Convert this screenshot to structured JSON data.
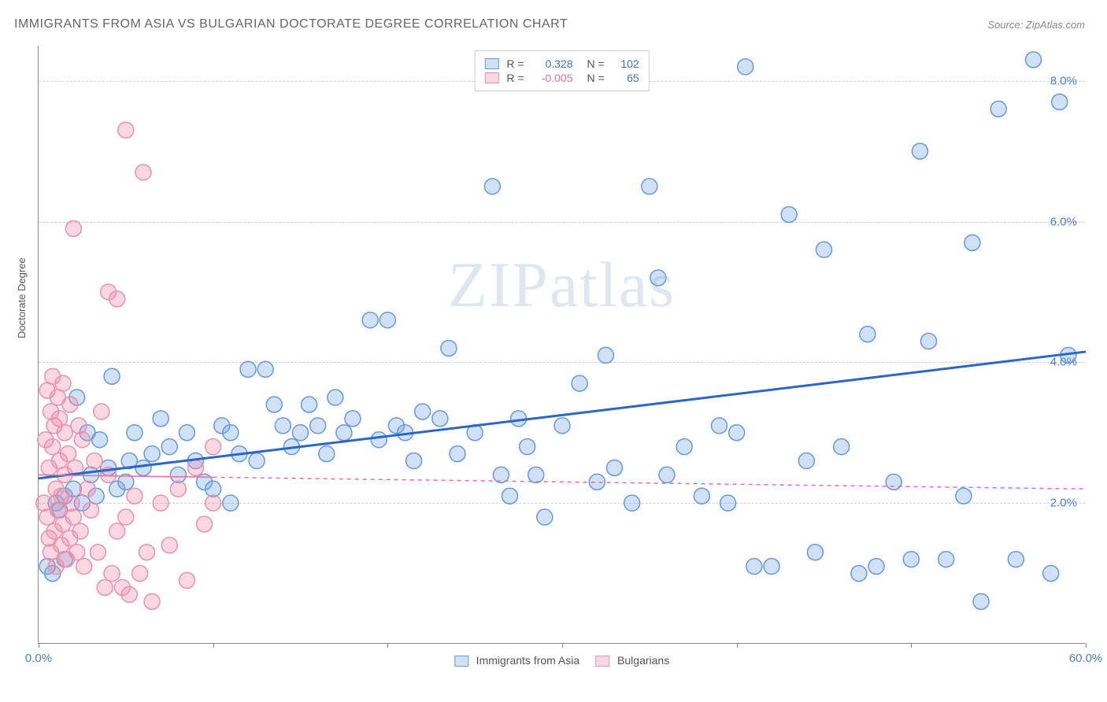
{
  "title": "IMMIGRANTS FROM ASIA VS BULGARIAN DOCTORATE DEGREE CORRELATION CHART",
  "source": "Source: ZipAtlas.com",
  "watermark": "ZIPatlas",
  "y_axis_label": "Doctorate Degree",
  "chart": {
    "type": "scatter",
    "background_color": "#ffffff",
    "grid_color": "#d0d0d0",
    "axis_color": "#888888",
    "xlim": [
      0,
      60
    ],
    "ylim": [
      0,
      8.5
    ],
    "x_ticks": [
      0,
      10,
      20,
      30,
      40,
      50,
      60
    ],
    "x_tick_labels": [
      "0.0%",
      "",
      "",
      "",
      "",
      "",
      "60.0%"
    ],
    "y_ticks": [
      2,
      4,
      6,
      8
    ],
    "y_tick_labels": [
      "2.0%",
      "4.0%",
      "6.0%",
      "8.0%"
    ],
    "tick_label_color": "#4a7fc9",
    "tick_label_fontsize": 15,
    "marker_radius": 10,
    "marker_stroke_width": 1.5,
    "series": [
      {
        "name": "Immigrants from Asia",
        "fill": "rgba(120,165,225,0.35)",
        "stroke": "#6699dd",
        "R": "0.328",
        "N": "102",
        "regression": {
          "x1": 0,
          "y1": 2.35,
          "x2": 60,
          "y2": 4.15,
          "color": "#2a66c9",
          "width": 3,
          "dash": "none"
        },
        "data_extent_x": 60,
        "points": [
          [
            0.5,
            1.1
          ],
          [
            0.8,
            1.0
          ],
          [
            1.0,
            2.0
          ],
          [
            1.2,
            1.9
          ],
          [
            1.5,
            2.1
          ],
          [
            1.5,
            1.2
          ],
          [
            2.0,
            2.2
          ],
          [
            2.2,
            3.5
          ],
          [
            2.5,
            2.0
          ],
          [
            2.8,
            3.0
          ],
          [
            3.0,
            2.4
          ],
          [
            3.3,
            2.1
          ],
          [
            3.5,
            2.9
          ],
          [
            4.0,
            2.5
          ],
          [
            4.5,
            2.2
          ],
          [
            5.0,
            2.3
          ],
          [
            5.2,
            2.6
          ],
          [
            5.5,
            3.0
          ],
          [
            6.0,
            2.5
          ],
          [
            6.5,
            2.7
          ],
          [
            7.0,
            3.2
          ],
          [
            7.5,
            2.8
          ],
          [
            8.0,
            2.4
          ],
          [
            8.5,
            3.0
          ],
          [
            9.0,
            2.6
          ],
          [
            9.5,
            2.3
          ],
          [
            10.0,
            2.2
          ],
          [
            10.5,
            3.1
          ],
          [
            11.0,
            3.0
          ],
          [
            11.5,
            2.7
          ],
          [
            12.0,
            3.9
          ],
          [
            12.5,
            2.6
          ],
          [
            13.0,
            3.9
          ],
          [
            13.5,
            3.4
          ],
          [
            14.0,
            3.1
          ],
          [
            14.5,
            2.8
          ],
          [
            15.0,
            3.0
          ],
          [
            15.5,
            3.4
          ],
          [
            16.0,
            3.1
          ],
          [
            16.5,
            2.7
          ],
          [
            17.0,
            3.5
          ],
          [
            17.5,
            3.0
          ],
          [
            18.0,
            3.2
          ],
          [
            19.0,
            4.6
          ],
          [
            19.5,
            2.9
          ],
          [
            20.0,
            4.6
          ],
          [
            20.5,
            3.1
          ],
          [
            21.0,
            3.0
          ],
          [
            21.5,
            2.6
          ],
          [
            22.0,
            3.3
          ],
          [
            23.0,
            3.2
          ],
          [
            23.5,
            4.2
          ],
          [
            24.0,
            2.7
          ],
          [
            25.0,
            3.0
          ],
          [
            26.0,
            6.5
          ],
          [
            26.5,
            2.4
          ],
          [
            27.0,
            2.1
          ],
          [
            27.5,
            3.2
          ],
          [
            28.0,
            2.8
          ],
          [
            28.5,
            2.4
          ],
          [
            29.0,
            1.8
          ],
          [
            30.0,
            3.1
          ],
          [
            31.0,
            3.7
          ],
          [
            32.0,
            2.3
          ],
          [
            33.0,
            2.5
          ],
          [
            34.0,
            2.0
          ],
          [
            35.0,
            6.5
          ],
          [
            35.5,
            5.2
          ],
          [
            36.0,
            2.4
          ],
          [
            37.0,
            2.8
          ],
          [
            38.0,
            2.1
          ],
          [
            39.0,
            3.1
          ],
          [
            39.5,
            2.0
          ],
          [
            40.0,
            3.0
          ],
          [
            41.0,
            1.1
          ],
          [
            42.0,
            1.1
          ],
          [
            43.0,
            6.1
          ],
          [
            44.0,
            2.6
          ],
          [
            44.5,
            1.3
          ],
          [
            45.0,
            5.6
          ],
          [
            46.0,
            2.8
          ],
          [
            47.0,
            1.0
          ],
          [
            47.5,
            4.4
          ],
          [
            48.0,
            1.1
          ],
          [
            49.0,
            2.3
          ],
          [
            50.0,
            1.2
          ],
          [
            50.5,
            7.0
          ],
          [
            51.0,
            4.3
          ],
          [
            52.0,
            1.2
          ],
          [
            53.0,
            2.1
          ],
          [
            53.5,
            5.7
          ],
          [
            54.0,
            0.6
          ],
          [
            55.0,
            7.6
          ],
          [
            56.0,
            1.2
          ],
          [
            57.0,
            8.3
          ],
          [
            58.0,
            1.0
          ],
          [
            58.5,
            7.7
          ],
          [
            59.0,
            4.1
          ],
          [
            40.5,
            8.2
          ],
          [
            32.5,
            4.1
          ],
          [
            11.0,
            2.0
          ],
          [
            4.2,
            3.8
          ]
        ]
      },
      {
        "name": "Bulgarians",
        "fill": "rgba(240,140,170,0.35)",
        "stroke": "#e792ae",
        "R": "-0.005",
        "N": "65",
        "regression": {
          "x1": 0,
          "y1": 2.4,
          "x2": 60,
          "y2": 2.2,
          "color": "#e86f95",
          "width": 1.5,
          "dash": "4,4"
        },
        "regression_solid_extent_x": 10,
        "points": [
          [
            0.3,
            2.0
          ],
          [
            0.4,
            2.9
          ],
          [
            0.5,
            1.8
          ],
          [
            0.5,
            3.6
          ],
          [
            0.6,
            1.5
          ],
          [
            0.6,
            2.5
          ],
          [
            0.7,
            3.3
          ],
          [
            0.7,
            1.3
          ],
          [
            0.8,
            2.8
          ],
          [
            0.8,
            3.8
          ],
          [
            0.9,
            1.6
          ],
          [
            0.9,
            3.1
          ],
          [
            1.0,
            2.2
          ],
          [
            1.0,
            1.1
          ],
          [
            1.1,
            3.5
          ],
          [
            1.1,
            1.9
          ],
          [
            1.2,
            2.6
          ],
          [
            1.2,
            3.2
          ],
          [
            1.3,
            1.4
          ],
          [
            1.3,
            2.1
          ],
          [
            1.4,
            3.7
          ],
          [
            1.4,
            1.7
          ],
          [
            1.5,
            2.4
          ],
          [
            1.5,
            3.0
          ],
          [
            1.6,
            1.2
          ],
          [
            1.7,
            2.7
          ],
          [
            1.8,
            3.4
          ],
          [
            1.8,
            1.5
          ],
          [
            1.9,
            2.0
          ],
          [
            2.0,
            5.9
          ],
          [
            2.0,
            1.8
          ],
          [
            2.1,
            2.5
          ],
          [
            2.2,
            1.3
          ],
          [
            2.3,
            3.1
          ],
          [
            2.4,
            1.6
          ],
          [
            2.5,
            2.9
          ],
          [
            2.6,
            1.1
          ],
          [
            2.8,
            2.2
          ],
          [
            3.0,
            1.9
          ],
          [
            3.2,
            2.6
          ],
          [
            3.4,
            1.3
          ],
          [
            3.6,
            3.3
          ],
          [
            3.8,
            0.8
          ],
          [
            4.0,
            5.0
          ],
          [
            4.0,
            2.4
          ],
          [
            4.2,
            1.0
          ],
          [
            4.5,
            4.9
          ],
          [
            4.5,
            1.6
          ],
          [
            4.8,
            0.8
          ],
          [
            5.0,
            7.3
          ],
          [
            5.0,
            1.8
          ],
          [
            5.2,
            0.7
          ],
          [
            5.5,
            2.1
          ],
          [
            5.8,
            1.0
          ],
          [
            6.0,
            6.7
          ],
          [
            6.2,
            1.3
          ],
          [
            6.5,
            0.6
          ],
          [
            7.0,
            2.0
          ],
          [
            7.5,
            1.4
          ],
          [
            8.0,
            2.2
          ],
          [
            8.5,
            0.9
          ],
          [
            9.0,
            2.5
          ],
          [
            9.5,
            1.7
          ],
          [
            10.0,
            2.8
          ],
          [
            10.0,
            2.0
          ]
        ]
      }
    ]
  }
}
